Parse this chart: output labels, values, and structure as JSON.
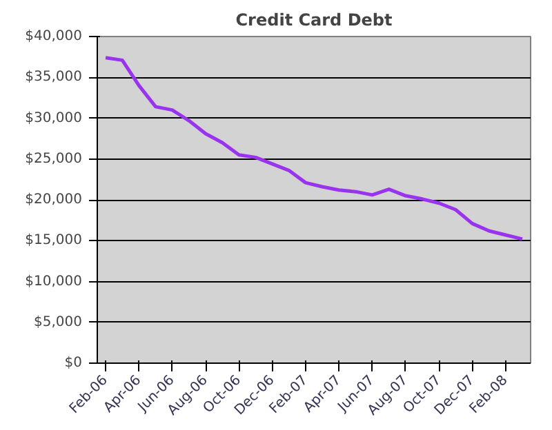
{
  "chart_data": {
    "type": "line",
    "title": "Credit Card Debt",
    "categories": [
      "Feb-06",
      null,
      "Apr-06",
      null,
      "Jun-06",
      null,
      "Aug-06",
      null,
      "Oct-06",
      null,
      "Dec-06",
      null,
      "Feb-07",
      null,
      "Apr-07",
      null,
      "Jun-07",
      null,
      "Aug-07",
      null,
      "Oct-07",
      null,
      "Dec-07",
      null,
      "Feb-08",
      null
    ],
    "series": [
      {
        "color": "#9933ee",
        "values": [
          37400,
          37100,
          34000,
          31400,
          31000,
          29700,
          28100,
          27000,
          25500,
          25200,
          24400,
          23600,
          22100,
          21600,
          21200,
          21000,
          20600,
          21300,
          20500,
          20100,
          19600,
          18800,
          17100,
          16200,
          15700,
          15200
        ]
      }
    ],
    "ylim": [
      0,
      40000
    ],
    "yticks": [
      {
        "value": 0,
        "label": "$0"
      },
      {
        "value": 5000,
        "label": "$5,000"
      },
      {
        "value": 10000,
        "label": "$10,000"
      },
      {
        "value": 15000,
        "label": "$15,000"
      },
      {
        "value": 20000,
        "label": "$20,000"
      },
      {
        "value": 25000,
        "label": "$25,000"
      },
      {
        "value": 30000,
        "label": "$30,000"
      },
      {
        "value": 35000,
        "label": "$35,000"
      },
      {
        "value": 40000,
        "label": "$40,000"
      }
    ],
    "grid": "y",
    "marker": "none",
    "line_style": "solid"
  }
}
